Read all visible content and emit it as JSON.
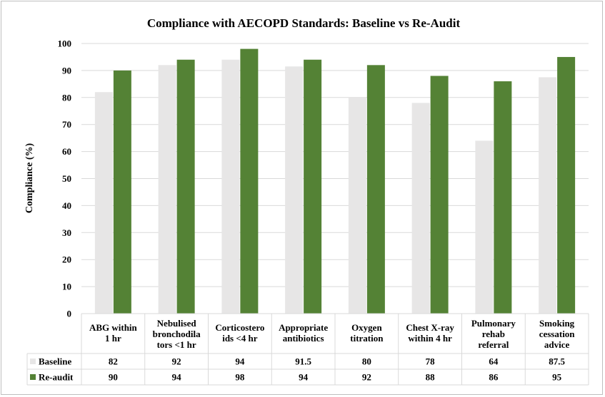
{
  "chart_data": {
    "type": "bar",
    "title": "Compliance with AECOPD Standards: Baseline vs Re-Audit",
    "ylabel": "Compliance (%)",
    "xlabel": "",
    "ylim": [
      0,
      100
    ],
    "yticks": [
      0,
      10,
      20,
      30,
      40,
      50,
      60,
      70,
      80,
      90,
      100
    ],
    "grid": true,
    "legend": "data-table",
    "categories": [
      [
        "ABG within",
        "1 hr"
      ],
      [
        "Nebulised",
        "bronchodila",
        "tors <1 hr"
      ],
      [
        "Corticostero",
        "ids <4 hr"
      ],
      [
        "Appropriate",
        "antibiotics"
      ],
      [
        "Oxygen",
        "titration"
      ],
      [
        "Chest X-ray",
        "within 4 hr"
      ],
      [
        "Pulmonary",
        "rehab",
        "referral"
      ],
      [
        "Smoking",
        "cessation",
        "advice"
      ]
    ],
    "series": [
      {
        "name": "Baseline",
        "color": "#e7e6e6",
        "values": [
          82,
          92,
          94,
          91.5,
          80,
          78,
          64,
          87.5
        ],
        "labels": [
          "82",
          "92",
          "94",
          "91.5",
          "80",
          "78",
          "64",
          "87.5"
        ]
      },
      {
        "name": "Re-audit",
        "color": "#548235",
        "values": [
          90,
          94,
          98,
          94,
          92,
          88,
          86,
          95
        ],
        "labels": [
          "90",
          "94",
          "98",
          "94",
          "92",
          "88",
          "86",
          "95"
        ]
      }
    ]
  }
}
